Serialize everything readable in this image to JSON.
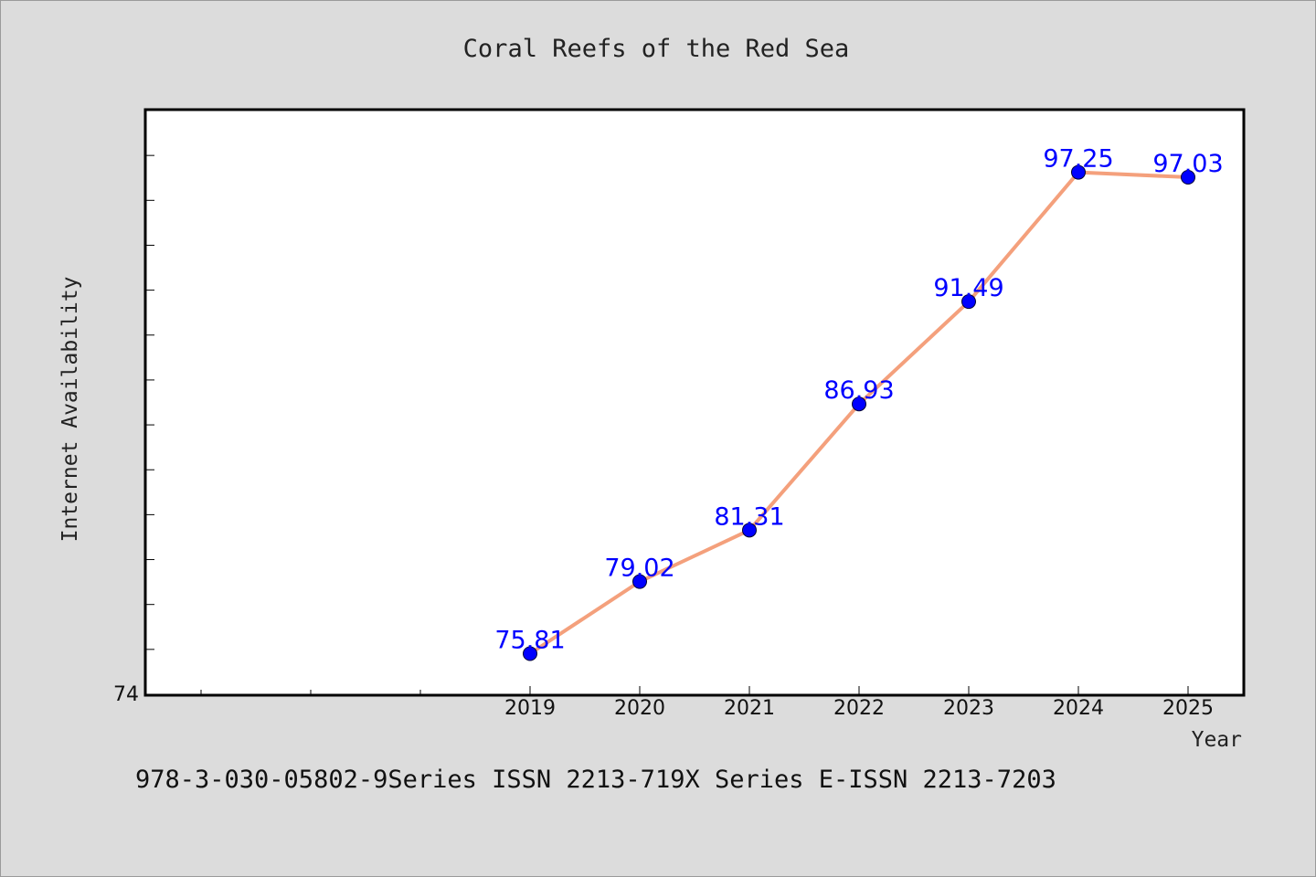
{
  "footer": {
    "text": "978-3-030-05802-9Series ISSN 2213-719X Series E-ISSN 2213-7203"
  },
  "colors": {
    "background": "#dcdcdc",
    "plot_background": "#ffffff",
    "line": "#f4a07c",
    "marker": "#0000ff",
    "data_label": "#0000ff"
  },
  "chart_data": {
    "type": "line",
    "title": "Coral Reefs of the Red Sea",
    "xlabel": "Year",
    "ylabel": "Internet Availability",
    "x_tick_labels": [
      "2019",
      "2020",
      "2021",
      "2022",
      "2023",
      "2024",
      "2025"
    ],
    "y_tick_labels": [
      "74"
    ],
    "xlim": [
      2015.5,
      2025.5
    ],
    "ylim": [
      74,
      100
    ],
    "grid": false,
    "series": [
      {
        "x": [
          2019,
          2020,
          2021,
          2022,
          2023,
          2024,
          2025
        ],
        "values": [
          75.81,
          79.02,
          81.31,
          86.93,
          91.49,
          97.25,
          97.03
        ],
        "labels": [
          "75.81",
          "79.02",
          "81.31",
          "86.93",
          "91.49",
          "97.25",
          "97.03"
        ]
      }
    ]
  }
}
